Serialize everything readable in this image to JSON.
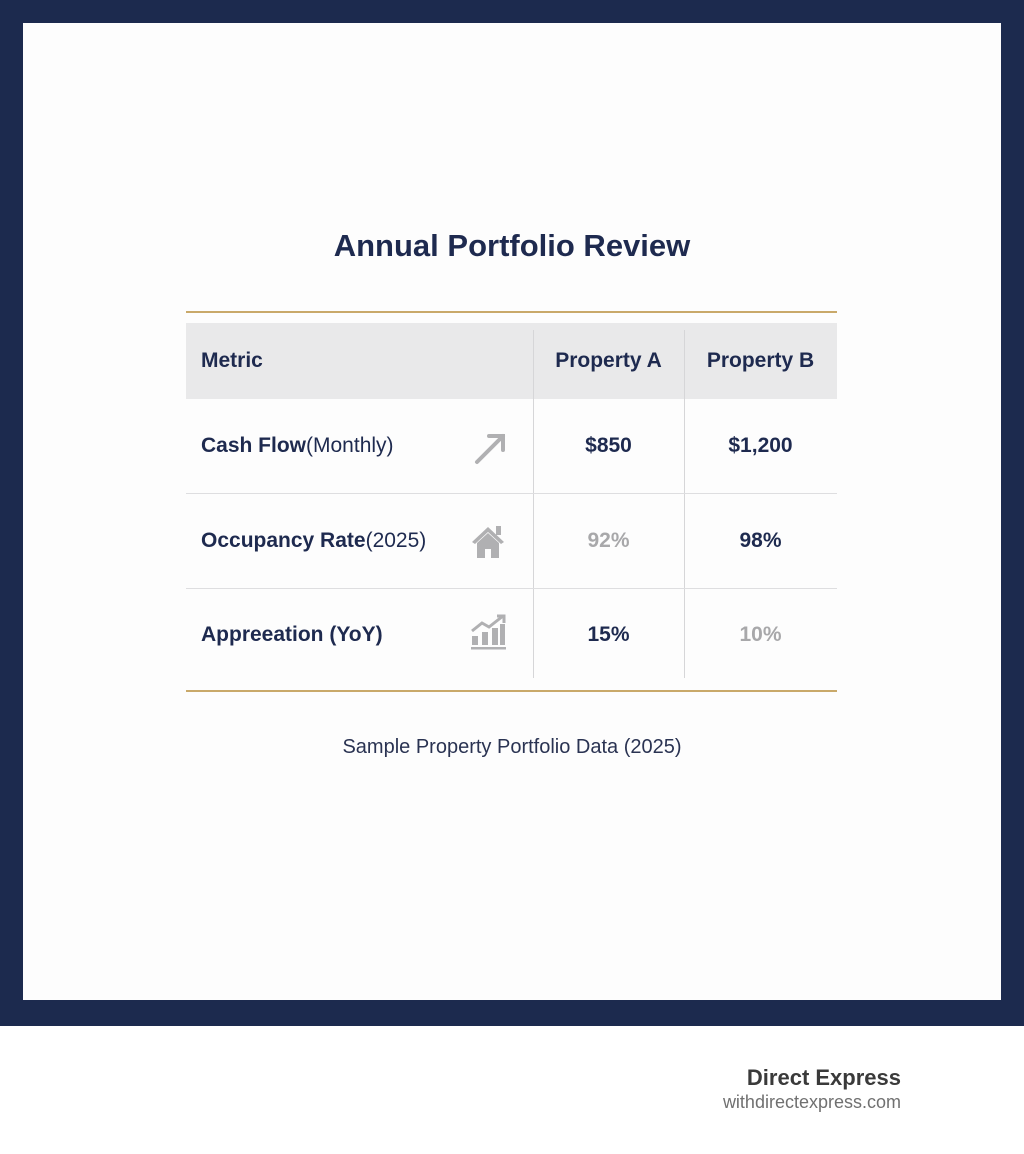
{
  "title": "Annual Portfolio Review",
  "table": {
    "headers": [
      "Metric",
      "Property A",
      "Property B"
    ],
    "rows": [
      {
        "label_bold": "Cash Flow",
        "label_rest": " (Monthly)",
        "icon": "trend-arrow-icon",
        "a": "$850",
        "b": "$1,200",
        "a_muted": false,
        "b_muted": false
      },
      {
        "label_bold": "Occupancy Rate",
        "label_rest": " (2025)",
        "icon": "house-icon",
        "a": "92%",
        "b": "98%",
        "a_muted": true,
        "b_muted": false
      },
      {
        "label_bold": "Appreeation (YoY)",
        "label_rest": "",
        "icon": "growth-chart-icon",
        "a": "15%",
        "b": "10%",
        "a_muted": false,
        "b_muted": true
      }
    ]
  },
  "caption": "Sample Property Portfolio Data (2025)",
  "brand": {
    "name": "Direct Express",
    "url": "withdirectexpress.com"
  },
  "colors": {
    "navy": "#1c2a4e",
    "gold": "#c9a96a",
    "muted": "#a8a8aa"
  }
}
